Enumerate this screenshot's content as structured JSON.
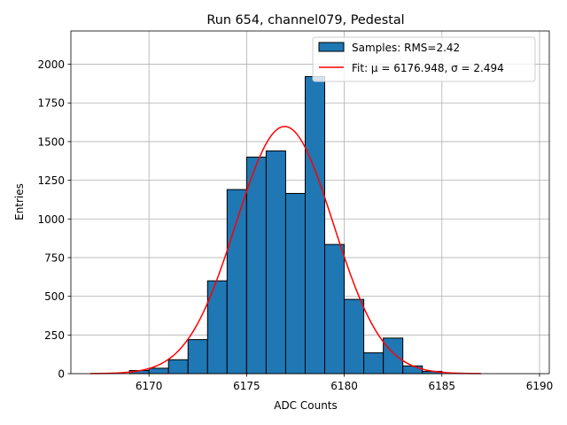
{
  "chart_data": {
    "type": "bar",
    "title": "Run 654, channel079, Pedestal",
    "xlabel": "ADC Counts",
    "ylabel": "Entries",
    "xlim": [
      6166,
      6190.5
    ],
    "ylim": [
      0,
      2215
    ],
    "xticks": [
      6170,
      6175,
      6180,
      6185,
      6190
    ],
    "yticks": [
      0,
      250,
      500,
      750,
      1000,
      1250,
      1500,
      1750,
      2000
    ],
    "grid": true,
    "legend_position": "top-right",
    "bin_width": 1,
    "bins": [
      {
        "left": 6169,
        "count": 20
      },
      {
        "left": 6170,
        "count": 35
      },
      {
        "left": 6171,
        "count": 90
      },
      {
        "left": 6172,
        "count": 220
      },
      {
        "left": 6173,
        "count": 600
      },
      {
        "left": 6174,
        "count": 1190
      },
      {
        "left": 6175,
        "count": 1400
      },
      {
        "left": 6176,
        "count": 1440
      },
      {
        "left": 6177,
        "count": 1165
      },
      {
        "left": 6178,
        "count": 1920
      },
      {
        "left": 6179,
        "count": 835
      },
      {
        "left": 6180,
        "count": 480
      },
      {
        "left": 6181,
        "count": 135
      },
      {
        "left": 6182,
        "count": 230
      },
      {
        "left": 6183,
        "count": 50
      },
      {
        "left": 6184,
        "count": 15
      }
    ],
    "fit": {
      "mu": 6176.948,
      "sigma": 2.494,
      "amplitude": 1598,
      "x_range": [
        6167,
        6187
      ]
    },
    "series": [
      {
        "name": "Samples: RMS=2.42",
        "kind": "histogram",
        "color": "#1f77b4"
      },
      {
        "name": "Fit: μ = 6176.948, σ = 2.494",
        "kind": "line",
        "color": "#ff0000"
      }
    ]
  }
}
